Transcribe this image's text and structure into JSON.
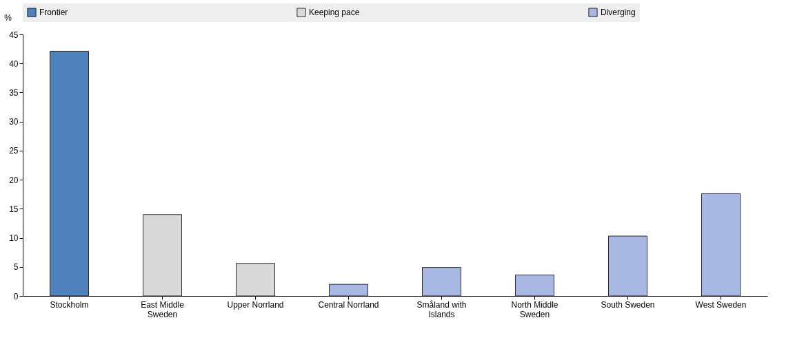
{
  "chart_data": {
    "type": "bar",
    "ylabel": "%",
    "categories": [
      "Stockholm",
      "East Middle Sweden",
      "Upper Norrland",
      "Central Norrland",
      "Småland with Islands",
      "North Middle Sweden",
      "South Sweden",
      "West Sweden"
    ],
    "series": [
      {
        "name": "Frontier",
        "color": "#4f81bd",
        "values": [
          42.1,
          null,
          null,
          null,
          null,
          null,
          null,
          null
        ]
      },
      {
        "name": "Keeping pace",
        "color": "#d9d9d9",
        "values": [
          null,
          14.0,
          5.6,
          null,
          null,
          null,
          null,
          null
        ]
      },
      {
        "name": "Diverging",
        "color": "#a9b8e3",
        "values": [
          null,
          null,
          null,
          2.0,
          4.9,
          3.6,
          10.3,
          17.6
        ]
      }
    ],
    "ylim": [
      0,
      45
    ],
    "yticks": [
      0,
      5,
      10,
      15,
      20,
      25,
      30,
      35,
      40,
      45
    ],
    "grid": false,
    "legend": "top"
  }
}
